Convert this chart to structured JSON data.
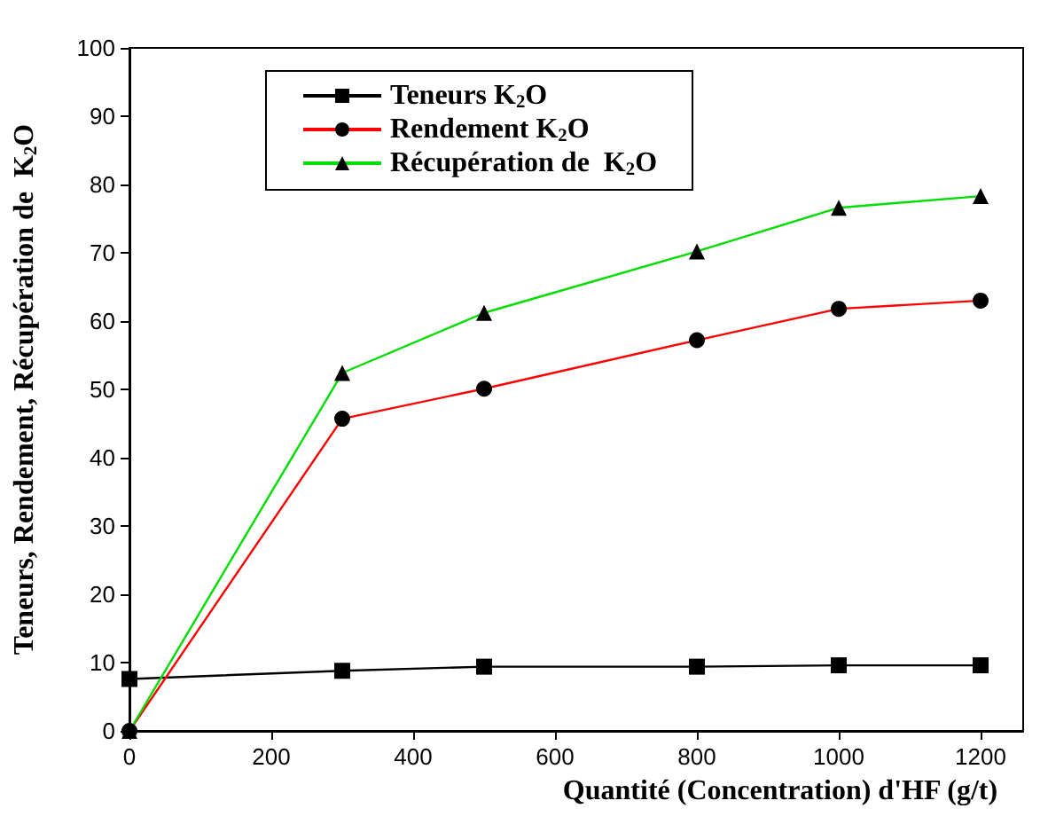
{
  "chart_data": {
    "type": "line",
    "xlabel": "Quantité (Concentration) d'HF (g/t)",
    "ylabel": "Teneurs, Rendement, Récupération de  K$_{2}$O",
    "x": [
      0,
      300,
      500,
      800,
      1000,
      1200
    ],
    "series": [
      {
        "name": "Teneurs K$_{2}$O",
        "color": "#000000",
        "marker": "square",
        "values": [
          7.6,
          8.8,
          9.4,
          9.4,
          9.6,
          9.6
        ]
      },
      {
        "name": "Rendement K$_{2}$O",
        "color": "#ff0000",
        "marker": "circle",
        "values": [
          0,
          45.7,
          50.1,
          57.2,
          61.8,
          63
        ]
      },
      {
        "name": "Récupération de  K$_{2}$O",
        "color": "#00dd00",
        "marker": "triangle",
        "values": [
          0,
          52.4,
          61.2,
          70.2,
          76.6,
          78.3
        ]
      }
    ],
    "xlim": [
      0,
      1260
    ],
    "xticks": [
      0,
      200,
      400,
      600,
      800,
      1000,
      1200
    ],
    "ylim": [
      0,
      100
    ],
    "yticks": [
      0,
      10,
      20,
      30,
      40,
      50,
      60,
      70,
      80,
      90,
      100
    ],
    "grid": false,
    "legend": "top left",
    "line_style": "solid"
  }
}
